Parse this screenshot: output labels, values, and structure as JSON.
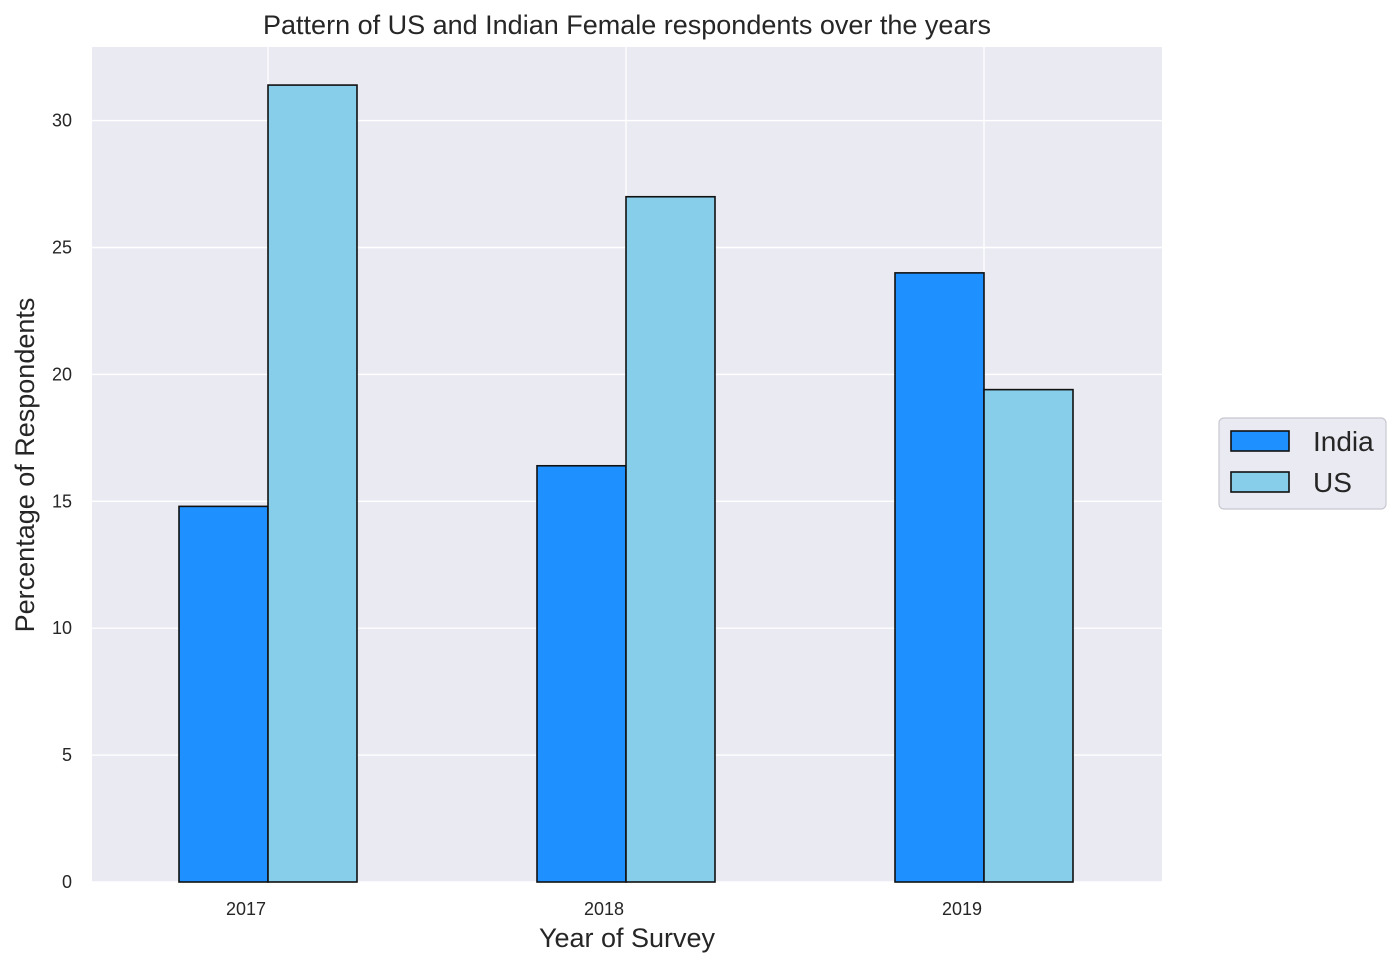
{
  "chart_data": {
    "type": "bar",
    "title": "Pattern of US and Indian Female respondents over the years",
    "xlabel": "Year of Survey",
    "ylabel": "Percentage of Respondents",
    "categories": [
      "2017",
      "2018",
      "2019"
    ],
    "series": [
      {
        "name": "India",
        "values": [
          14.8,
          16.4,
          24.0
        ],
        "color": "#1e90ff"
      },
      {
        "name": "US",
        "values": [
          31.4,
          27.0,
          19.4
        ],
        "color": "#87ceeb"
      }
    ],
    "ylim": [
      0,
      32.9
    ],
    "yticks": [
      0,
      5,
      10,
      15,
      20,
      25,
      30
    ],
    "grid": true,
    "legend_position": "right, outside plot"
  }
}
